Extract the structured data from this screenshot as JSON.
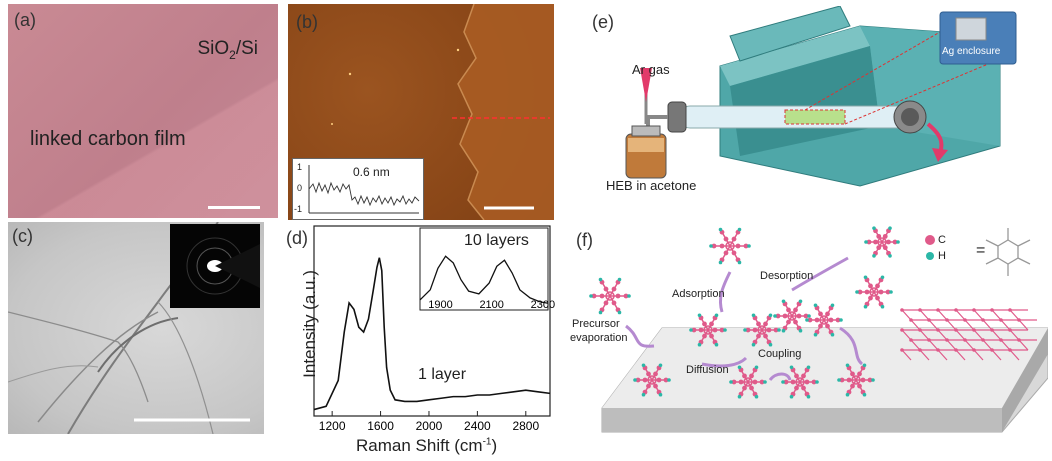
{
  "panel_a": {
    "label": "(a)",
    "substrate_text": "SiO",
    "substrate_sub": "2",
    "substrate_rest": "/Si",
    "film_text": "linked carbon film"
  },
  "panel_b": {
    "label": "(b)",
    "inset_value": "0.6 nm",
    "inset_ticks": [
      "1",
      "0",
      "-1"
    ]
  },
  "panel_c": {
    "label": "(c)"
  },
  "panel_d": {
    "label": "(d)",
    "ylabel": "Intensity (a.u.)",
    "xlabel": "Raman Shift (cm",
    "xlabel_sup": "-1",
    "xlabel_end": ")",
    "curve_label": "1 layer",
    "inset_label": "10 layers",
    "x_ticks": [
      "1200",
      "1600",
      "2000",
      "2400",
      "2800"
    ],
    "inset_ticks": [
      "1900",
      "2100",
      "2300"
    ]
  },
  "panel_e": {
    "label": "(e)",
    "gas_text": "Ar gas",
    "solution_text": "HEB in acetone",
    "enclosure_text": "Ag enclosure"
  },
  "panel_f": {
    "label": "(f)",
    "precursor_text_1": "Precursor",
    "precursor_text_2": "evaporation",
    "adsorption": "Adsorption",
    "desorption": "Desorption",
    "diffusion": "Diffusion",
    "coupling": "Coupling",
    "legend_c": "C",
    "legend_h": "H",
    "equals": "="
  },
  "chart_data": {
    "type": "line",
    "xlabel": "Raman Shift (cm-1)",
    "ylabel": "Intensity (a.u.)",
    "xlim": [
      1050,
      3000
    ],
    "series": [
      {
        "name": "1 layer",
        "x": [
          1050,
          1150,
          1250,
          1300,
          1340,
          1380,
          1420,
          1460,
          1500,
          1540,
          1570,
          1590,
          1610,
          1630,
          1650,
          1680,
          1720,
          1800,
          1900,
          2000,
          2100,
          2200,
          2300,
          2400,
          2500,
          2600,
          2700,
          2800,
          2900,
          3000
        ],
        "y": [
          0.04,
          0.06,
          0.22,
          0.52,
          0.7,
          0.66,
          0.55,
          0.52,
          0.6,
          0.78,
          0.92,
          0.98,
          0.9,
          0.55,
          0.3,
          0.16,
          0.1,
          0.09,
          0.09,
          0.1,
          0.11,
          0.12,
          0.12,
          0.13,
          0.13,
          0.14,
          0.15,
          0.16,
          0.15,
          0.14
        ]
      }
    ],
    "inset": {
      "label": "10 layers",
      "xlim": [
        1820,
        2320
      ],
      "x": [
        1820,
        1860,
        1890,
        1920,
        1950,
        1980,
        2010,
        2050,
        2090,
        2120,
        2150,
        2180,
        2210,
        2250,
        2290,
        2320
      ],
      "y": [
        0.15,
        0.3,
        0.62,
        0.8,
        0.7,
        0.45,
        0.28,
        0.24,
        0.4,
        0.65,
        0.74,
        0.55,
        0.3,
        0.18,
        0.12,
        0.1
      ]
    }
  }
}
